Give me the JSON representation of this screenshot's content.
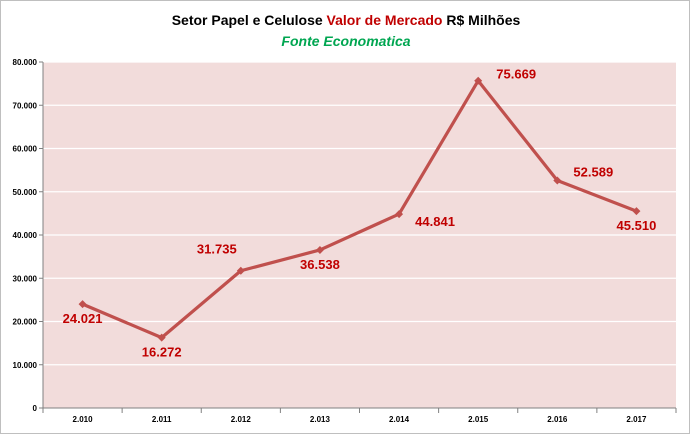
{
  "chart_data": {
    "type": "line",
    "title_parts": [
      {
        "text": "Setor Papel e Celulose ",
        "color": "#000000"
      },
      {
        "text": "Valor de Mercado",
        "color": "#c00000"
      },
      {
        "text": " R$ Milhões",
        "color": "#000000"
      }
    ],
    "subtitle": "Fonte Economatica",
    "subtitle_color": "#00a651",
    "categories": [
      "2.010",
      "2.011",
      "2.012",
      "2.013",
      "2.014",
      "2.015",
      "2.016",
      "2.017"
    ],
    "values": [
      24021,
      16272,
      31735,
      36538,
      44841,
      75669,
      52589,
      45510
    ],
    "data_labels": [
      "24.021",
      "16.272",
      "31.735",
      "36.538",
      "44.841",
      "75.669",
      "52.589",
      "45.510"
    ],
    "label_positions": [
      "below",
      "below",
      "above-left",
      "below",
      "below-right",
      "above-right",
      "right",
      "below"
    ],
    "yticks": [
      0,
      10000,
      20000,
      30000,
      40000,
      50000,
      60000,
      70000,
      80000
    ],
    "ytick_labels": [
      "0",
      "10.000",
      "20.000",
      "30.000",
      "40.000",
      "50.000",
      "60.000",
      "70.000",
      "80.000"
    ],
    "ylim": [
      0,
      80000
    ],
    "grid": true,
    "colors": {
      "series": "#c0504d",
      "label": "#c00000",
      "plot_bg": "#f2dcdb",
      "grid": "#ffffff",
      "axis": "#808080"
    }
  }
}
